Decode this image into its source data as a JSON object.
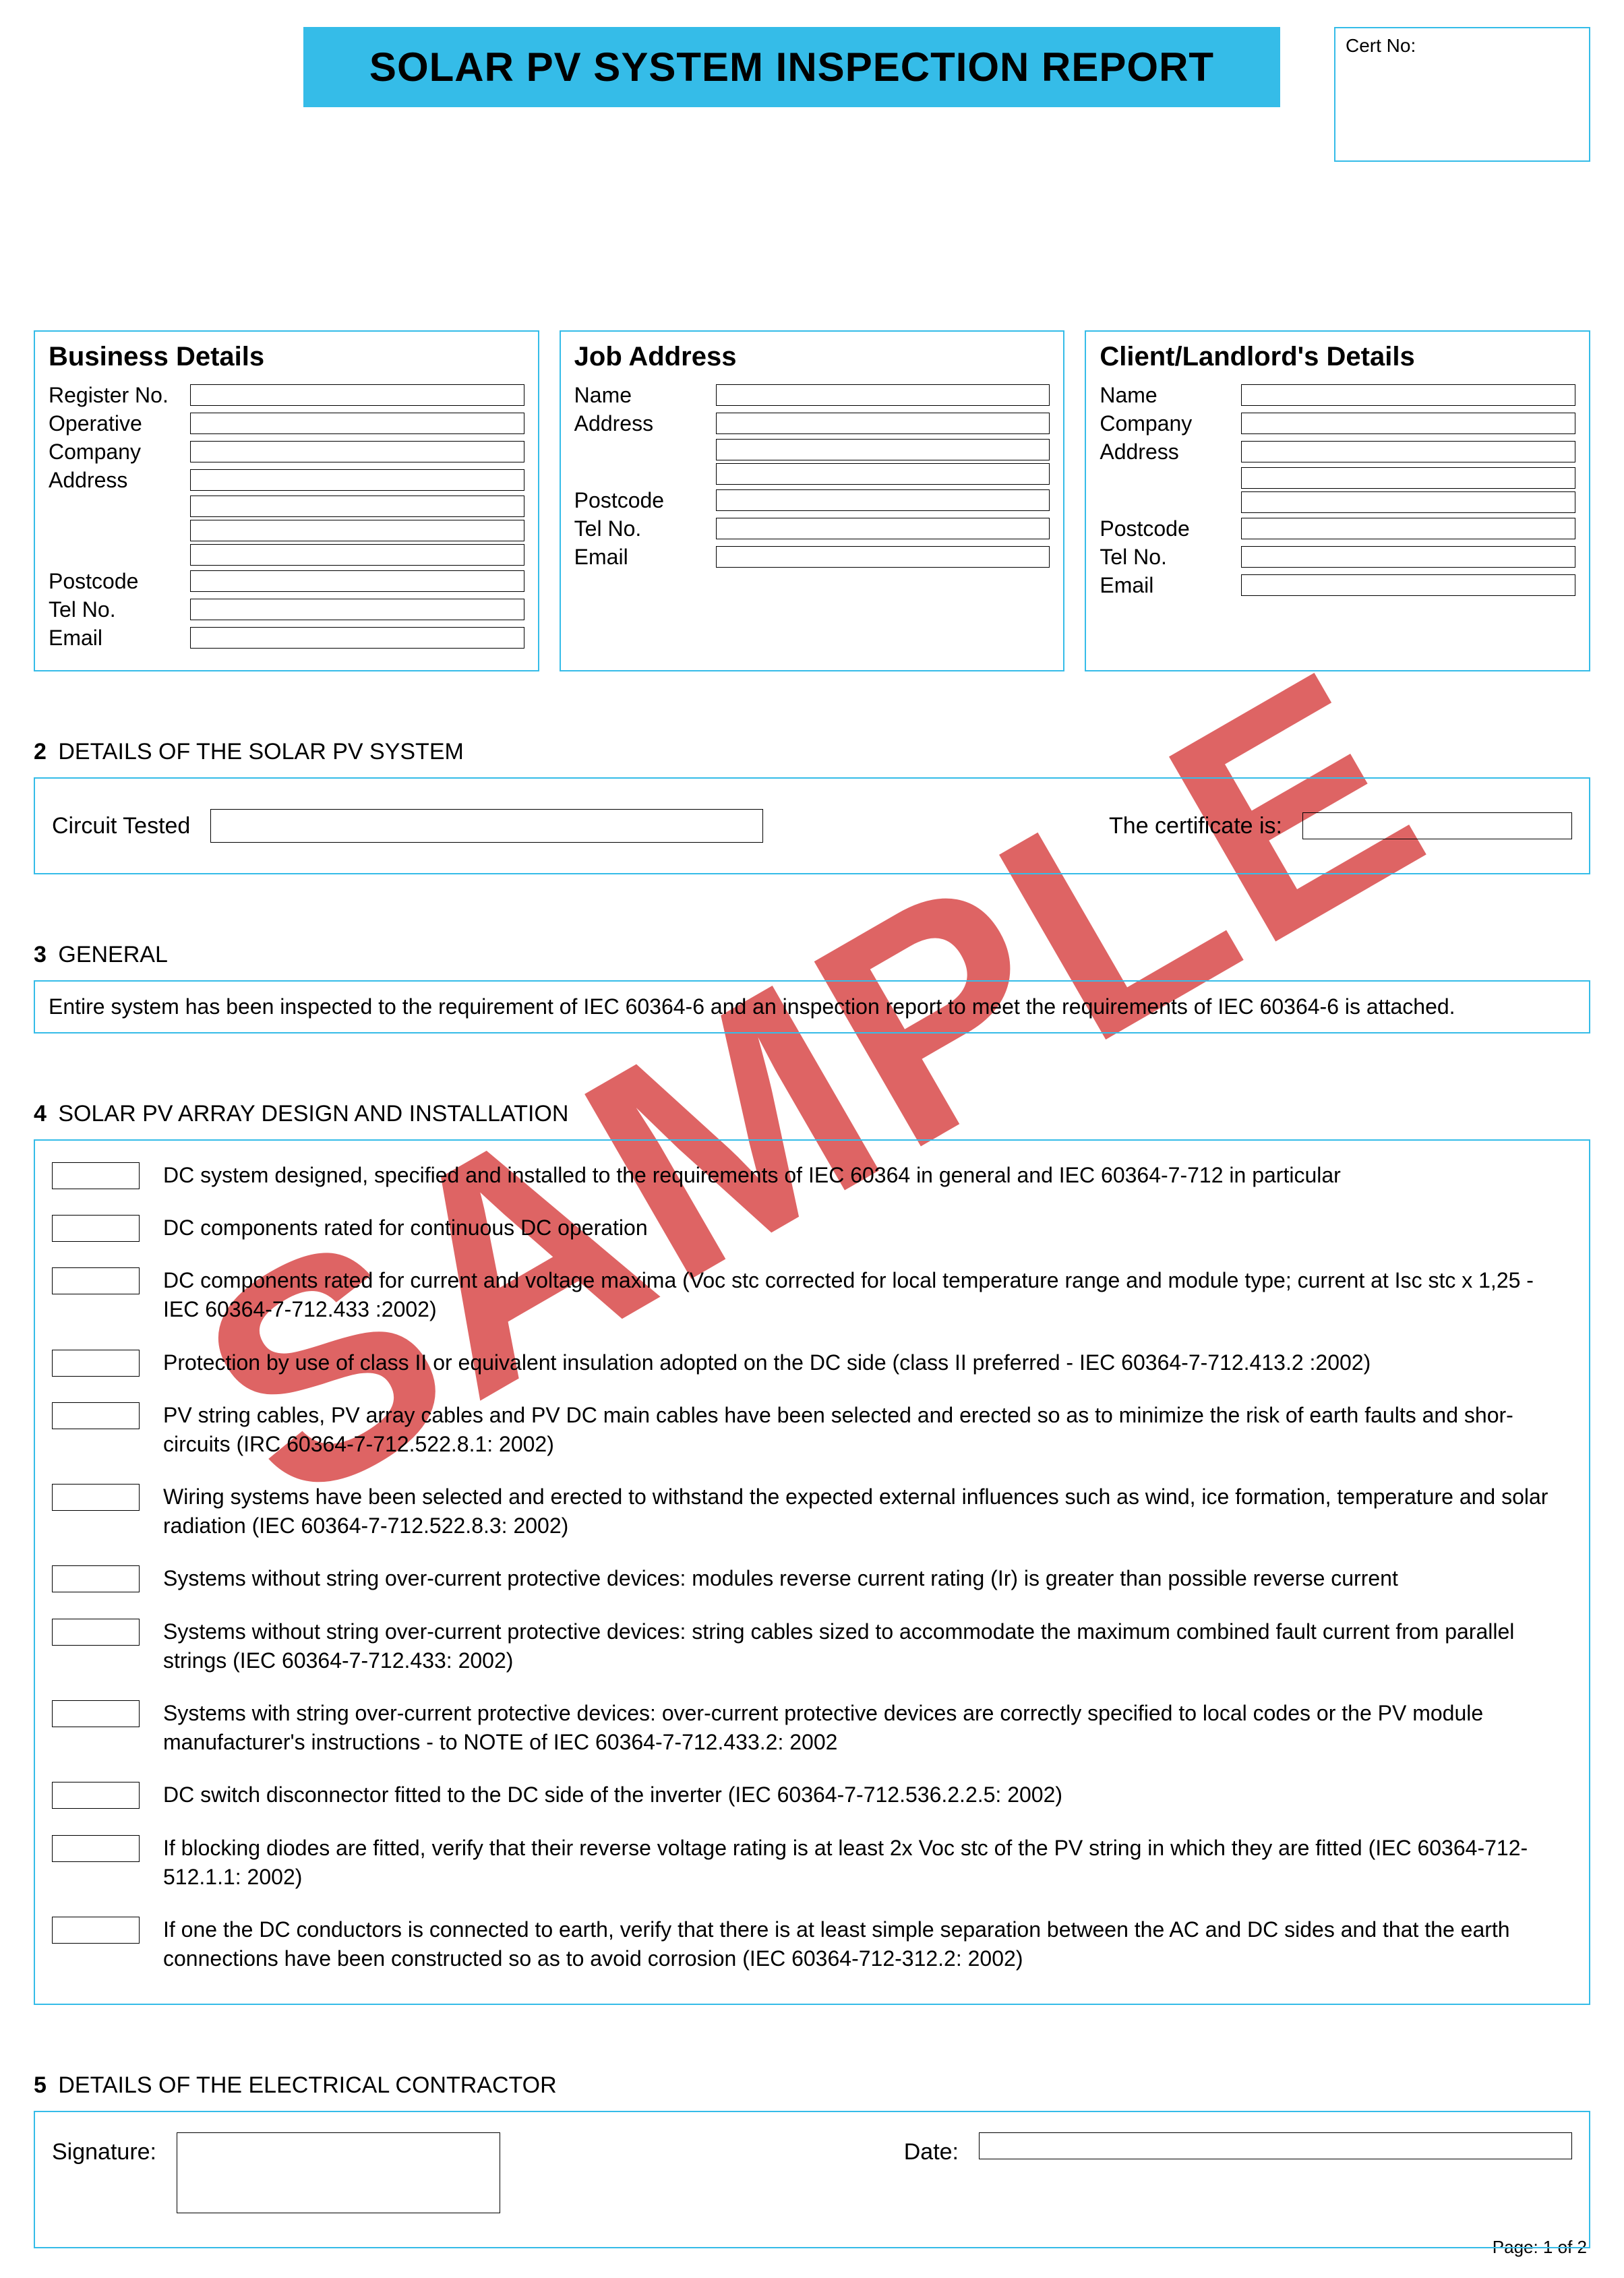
{
  "colors": {
    "accent": "#35bce8",
    "watermark": "#d94a4a",
    "border": "#000000",
    "background": "#ffffff"
  },
  "watermark": "SAMPLE",
  "header": {
    "title": "SOLAR PV SYSTEM INSPECTION REPORT",
    "cert_label": "Cert No:"
  },
  "business": {
    "heading": "Business Details",
    "labels": {
      "register_no": "Register No.",
      "operative": "Operative",
      "company": "Company",
      "address": "Address",
      "postcode": "Postcode",
      "tel": "Tel No.",
      "email": "Email"
    }
  },
  "job": {
    "heading": "Job Address",
    "labels": {
      "name": "Name",
      "address": "Address",
      "postcode": "Postcode",
      "tel": "Tel No.",
      "email": "Email"
    }
  },
  "client": {
    "heading": "Client/Landlord's Details",
    "labels": {
      "name": "Name",
      "company": "Company",
      "address": "Address",
      "postcode": "Postcode",
      "tel": "Tel No.",
      "email": "Email"
    }
  },
  "sec2": {
    "num": "2",
    "title": "DETAILS OF THE SOLAR PV SYSTEM",
    "circuit_label": "Circuit Tested",
    "cert_label": "The certificate is:"
  },
  "sec3": {
    "num": "3",
    "title": "GENERAL",
    "text": "Entire system has been inspected to the requirement of IEC 60364-6 and an inspection report to meet the requirements of IEC 60364-6 is attached."
  },
  "sec4": {
    "num": "4",
    "title": "SOLAR PV ARRAY DESIGN AND INSTALLATION",
    "items": [
      "DC system designed, specified and installed to the requirements of IEC 60364 in general and IEC 60364-7-712 in particular",
      "DC components rated for continuous DC operation",
      "DC components rated for current and voltage maxima (Voc stc corrected for local temperature range and module type; current at Isc stc x 1,25 - IEC 60364-7-712.433 :2002)",
      "Protection by use of class II or equivalent insulation adopted on the DC side (class II preferred - IEC 60364-7-712.413.2 :2002)",
      "PV string cables, PV array cables and PV DC main cables have been selected and erected so as to minimize the risk of earth faults and shor-circuits (IRC 60364-7-712.522.8.1: 2002)",
      "Wiring systems have been selected and erected to withstand the expected external influences such as wind, ice formation, temperature and solar radiation (IEC 60364-7-712.522.8.3: 2002)",
      "Systems without string over-current protective devices: modules reverse current rating (Ir) is greater than possible reverse current",
      "Systems without string over-current protective devices: string cables sized to accommodate the maximum combined fault current from parallel strings (IEC 60364-7-712.433: 2002)",
      "Systems with string over-current protective devices: over-current protective devices are correctly specified to local codes or the PV module manufacturer's instructions - to NOTE of IEC 60364-7-712.433.2: 2002",
      "DC switch disconnector fitted to the DC side of the inverter (IEC 60364-7-712.536.2.2.5: 2002)",
      "If blocking diodes are fitted, verify that their reverse voltage rating is at least 2x Voc stc of the PV string in which they are fitted (IEC 60364-712-512.1.1: 2002)",
      "If one the DC conductors is connected to earth, verify that there is at least simple separation between the AC and DC sides and that the earth connections have been constructed so as to avoid corrosion (IEC 60364-712-312.2: 2002)"
    ]
  },
  "sec5": {
    "num": "5",
    "title": "DETAILS OF THE ELECTRICAL CONTRACTOR",
    "signature_label": "Signature:",
    "date_label": "Date:"
  },
  "footer": {
    "page": "Page: 1 of 2"
  }
}
